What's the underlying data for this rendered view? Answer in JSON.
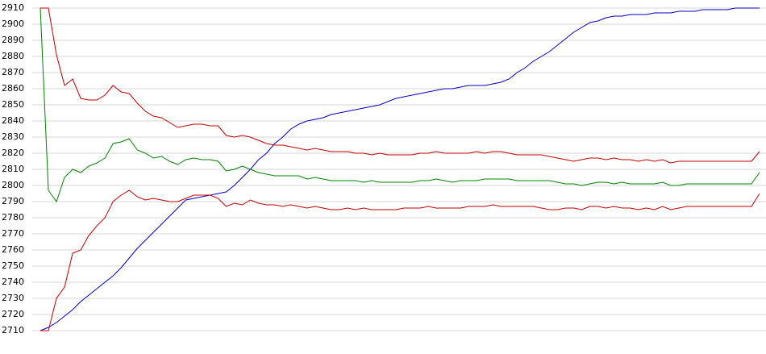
{
  "chart_data": {
    "type": "line",
    "ylim": [
      2710,
      2910
    ],
    "yticks": [
      2710,
      2720,
      2730,
      2740,
      2750,
      2760,
      2770,
      2780,
      2790,
      2800,
      2810,
      2820,
      2830,
      2840,
      2850,
      2860,
      2870,
      2880,
      2890,
      2900,
      2910
    ],
    "grid": true,
    "series": [
      {
        "color": "#0000c0",
        "values": [
          2710,
          2712,
          2715,
          2719,
          2723,
          2728,
          2732,
          2736,
          2740,
          2744,
          2749,
          2755,
          2761,
          2766,
          2771,
          2776,
          2781,
          2786,
          2791,
          2792,
          2793,
          2794,
          2795,
          2796,
          2800,
          2805,
          2810,
          2816,
          2820,
          2826,
          2830,
          2835,
          2838,
          2840,
          2841,
          2842,
          2844,
          2845,
          2846,
          2847,
          2848,
          2849,
          2850,
          2852,
          2854,
          2855,
          2856,
          2857,
          2858,
          2859,
          2860,
          2860,
          2861,
          2862,
          2862,
          2862,
          2863,
          2864,
          2866,
          2870,
          2873,
          2877,
          2880,
          2883,
          2887,
          2891,
          2895,
          2898,
          2901,
          2902,
          2904,
          2905,
          2905,
          2906,
          2906,
          2906,
          2907,
          2907,
          2907,
          2908,
          2908,
          2908,
          2909,
          2909,
          2909,
          2909,
          2910,
          2910,
          2910,
          2910
        ]
      },
      {
        "color": "#008000",
        "values": [
          2910,
          2797,
          2790,
          2805,
          2810,
          2808,
          2812,
          2814,
          2817,
          2826,
          2827,
          2829,
          2822,
          2820,
          2817,
          2818,
          2815,
          2813,
          2816,
          2817,
          2816,
          2816,
          2815,
          2809,
          2810,
          2812,
          2810,
          2808,
          2807,
          2806,
          2806,
          2806,
          2806,
          2804,
          2805,
          2804,
          2803,
          2803,
          2803,
          2803,
          2802,
          2803,
          2802,
          2802,
          2802,
          2802,
          2802,
          2803,
          2803,
          2804,
          2803,
          2802,
          2803,
          2803,
          2803,
          2804,
          2804,
          2804,
          2804,
          2803,
          2803,
          2803,
          2803,
          2803,
          2802,
          2801,
          2801,
          2800,
          2801,
          2802,
          2802,
          2801,
          2802,
          2801,
          2801,
          2801,
          2801,
          2802,
          2800,
          2800,
          2801,
          2801,
          2801,
          2801,
          2801,
          2801,
          2801,
          2801,
          2801,
          2808
        ]
      },
      {
        "color": "#c00000",
        "values": [
          2910,
          2910,
          2881,
          2862,
          2866,
          2854,
          2853,
          2853,
          2856,
          2862,
          2858,
          2857,
          2851,
          2846,
          2843,
          2842,
          2839,
          2836,
          2837,
          2838,
          2838,
          2837,
          2837,
          2831,
          2830,
          2831,
          2830,
          2828,
          2826,
          2825,
          2825,
          2824,
          2823,
          2822,
          2823,
          2822,
          2821,
          2821,
          2821,
          2820,
          2820,
          2819,
          2820,
          2819,
          2819,
          2819,
          2819,
          2820,
          2820,
          2821,
          2820,
          2820,
          2820,
          2820,
          2821,
          2820,
          2821,
          2821,
          2820,
          2819,
          2819,
          2819,
          2819,
          2818,
          2817,
          2816,
          2815,
          2816,
          2817,
          2817,
          2816,
          2817,
          2816,
          2816,
          2815,
          2816,
          2815,
          2816,
          2814,
          2815,
          2815,
          2815,
          2815,
          2815,
          2815,
          2815,
          2815,
          2815,
          2815,
          2821
        ]
      },
      {
        "color": "#c00000",
        "values": [
          2710,
          2710,
          2730,
          2737,
          2758,
          2760,
          2769,
          2775,
          2780,
          2790,
          2794,
          2797,
          2793,
          2791,
          2792,
          2791,
          2790,
          2790,
          2792,
          2794,
          2794,
          2794,
          2792,
          2787,
          2789,
          2788,
          2791,
          2789,
          2788,
          2788,
          2787,
          2788,
          2787,
          2786,
          2787,
          2786,
          2785,
          2785,
          2786,
          2785,
          2786,
          2785,
          2785,
          2785,
          2785,
          2786,
          2786,
          2786,
          2787,
          2786,
          2786,
          2786,
          2786,
          2787,
          2787,
          2787,
          2788,
          2787,
          2787,
          2787,
          2787,
          2787,
          2786,
          2785,
          2785,
          2786,
          2786,
          2785,
          2787,
          2787,
          2786,
          2787,
          2786,
          2786,
          2785,
          2786,
          2785,
          2787,
          2785,
          2786,
          2787,
          2787,
          2787,
          2787,
          2787,
          2787,
          2787,
          2787,
          2787,
          2795
        ]
      }
    ]
  }
}
